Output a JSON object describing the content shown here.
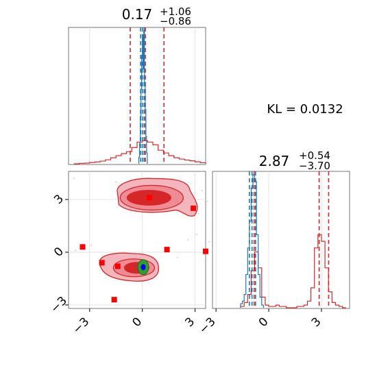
{
  "chart_data": [
    {
      "type": "histogram",
      "panel": "marginal-param-1",
      "title_main": "0.17",
      "title_sup": "+1.06",
      "title_sub": "−0.86",
      "xlim": [
        -4.2,
        3.6
      ],
      "grid": true,
      "series": [
        {
          "color": "#d62728",
          "bin_edges_x": [
            -3.9,
            -3.6,
            -3.3,
            -3.0,
            -2.7,
            -2.4,
            -2.1,
            -1.8,
            -1.5,
            -1.2,
            -0.9,
            -0.6,
            -0.3,
            0.0,
            0.3,
            0.6,
            0.9,
            1.2,
            1.5,
            1.8,
            2.1,
            2.4,
            2.7,
            3.0,
            3.3,
            3.6
          ],
          "heights": [
            0.0,
            0.003,
            0.005,
            0.01,
            0.014,
            0.02,
            0.03,
            0.045,
            0.06,
            0.075,
            0.09,
            0.12,
            0.16,
            0.17,
            0.16,
            0.14,
            0.1,
            0.08,
            0.06,
            0.045,
            0.035,
            0.028,
            0.022,
            0.015,
            0.008
          ],
          "quantiles": [
            -0.69,
            0.17,
            1.23
          ]
        },
        {
          "color": "#1f77b4",
          "bin_edges_x": [
            -0.2,
            -0.16,
            -0.12,
            -0.08,
            -0.04,
            0.0,
            0.04,
            0.08,
            0.12,
            0.16,
            0.2,
            0.24,
            0.28
          ],
          "heights": [
            0.05,
            0.15,
            0.35,
            0.55,
            0.8,
            0.95,
            0.7,
            0.98,
            0.6,
            0.4,
            0.2,
            0.08
          ],
          "quantiles": [
            -0.1,
            0.0,
            0.1
          ]
        }
      ]
    },
    {
      "type": "contour",
      "panel": "joint",
      "xlim": [
        -4.2,
        3.6
      ],
      "ylim": [
        -3.2,
        4.6
      ],
      "xticks": [
        "−3",
        "0",
        "3"
      ],
      "yticks": [
        "−3",
        "0",
        "3"
      ],
      "grid": true,
      "contour_color": "#d62728",
      "modes": [
        {
          "cx": 0.3,
          "cy": 3.1
        },
        {
          "cx": -0.4,
          "cy": -0.85
        }
      ],
      "narrow_posterior": {
        "cx": 0.05,
        "cy": -0.85,
        "colors": [
          "#2ca02c",
          "#0000ff"
        ]
      },
      "markers": {
        "color": "#ff0000",
        "points": [
          {
            "x": 0.4,
            "y": 3.1
          },
          {
            "x": 2.9,
            "y": 2.5
          },
          {
            "x": -3.4,
            "y": 0.3
          },
          {
            "x": 1.4,
            "y": 0.15
          },
          {
            "x": 3.6,
            "y": 0.05
          },
          {
            "x": -2.3,
            "y": -0.6
          },
          {
            "x": -1.4,
            "y": -0.8
          },
          {
            "x": -1.6,
            "y": -2.7
          }
        ]
      }
    },
    {
      "type": "histogram",
      "panel": "marginal-param-2",
      "title_main": "2.87",
      "title_sup": "+0.54",
      "title_sub": "−3.70",
      "xlim": [
        -3.2,
        4.6
      ],
      "xticks": [
        "−3",
        "0",
        "3"
      ],
      "grid": true,
      "series": [
        {
          "color": "#d62728",
          "bin_edges_x": [
            -1.6,
            -1.4,
            -1.2,
            -1.0,
            -0.8,
            -0.6,
            -0.4,
            -0.2,
            0.0,
            0.2,
            0.4,
            0.6,
            0.8,
            1.0,
            1.2,
            1.4,
            1.6,
            1.8,
            2.0,
            2.2,
            2.4,
            2.6,
            2.8,
            3.0,
            3.2,
            3.4,
            3.6,
            3.8,
            4.0,
            4.2,
            4.4
          ],
          "heights": [
            0.01,
            0.04,
            0.1,
            0.28,
            0.42,
            0.3,
            0.08,
            0.02,
            0.01,
            0.01,
            0.02,
            0.01,
            0.01,
            0.0,
            0.0,
            0.0,
            0.01,
            0.01,
            0.02,
            0.05,
            0.15,
            0.45,
            0.55,
            0.5,
            0.3,
            0.12,
            0.04,
            0.02,
            0.01,
            0.0
          ],
          "quantiles": [
            -0.83,
            2.87,
            3.41
          ]
        },
        {
          "color": "#1f77b4",
          "bin_edges_x": [
            -1.6,
            -1.5,
            -1.4,
            -1.3,
            -1.2,
            -1.1,
            -1.0,
            -0.9,
            -0.8,
            -0.7,
            -0.6,
            -0.5,
            -0.4,
            -0.3
          ],
          "heights": [
            0.03,
            0.05,
            0.1,
            0.25,
            0.45,
            0.65,
            0.9,
            1.0,
            0.95,
            0.55,
            0.25,
            0.08,
            0.02
          ],
          "quantiles": [
            -1.1,
            -0.95,
            -0.75
          ]
        }
      ]
    }
  ],
  "annotation": "KL = 0.0132"
}
